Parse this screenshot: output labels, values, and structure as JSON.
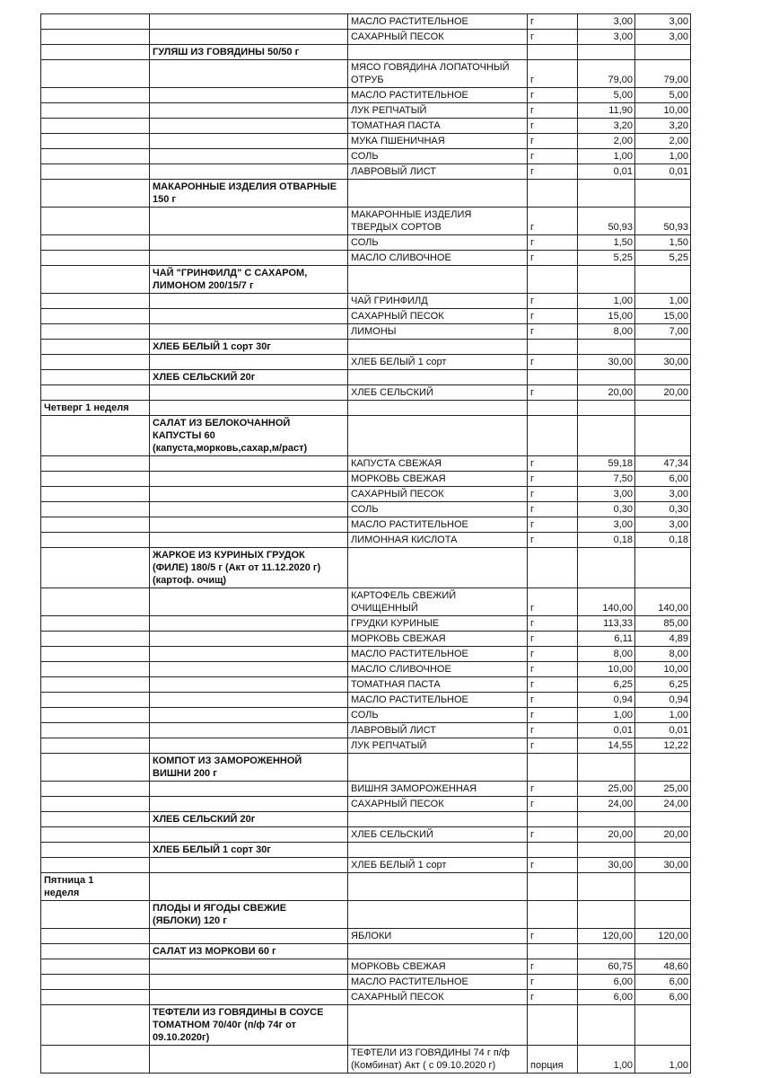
{
  "table": {
    "rows": [
      [
        "",
        "",
        "МАСЛО РАСТИТЕЛЬНОЕ",
        "г",
        "3,00",
        "3,00"
      ],
      [
        "",
        "",
        "САХАРНЫЙ ПЕСОК",
        "г",
        "3,00",
        "3,00"
      ],
      [
        "",
        "ГУЛЯШ ИЗ ГОВЯДИНЫ 50/50 г",
        "",
        "",
        "",
        ""
      ],
      [
        "",
        "",
        "МЯСО ГОВЯДИНА ЛОПАТОЧНЫЙ\nОТРУБ",
        "г",
        "79,00",
        "79,00"
      ],
      [
        "",
        "",
        "МАСЛО РАСТИТЕЛЬНОЕ",
        "г",
        "5,00",
        "5,00"
      ],
      [
        "",
        "",
        "ЛУК РЕПЧАТЫЙ",
        "г",
        "11,90",
        "10,00"
      ],
      [
        "",
        "",
        "ТОМАТНАЯ ПАСТА",
        "г",
        "3,20",
        "3,20"
      ],
      [
        "",
        "",
        "МУКА ПШЕНИЧНАЯ",
        "г",
        "2,00",
        "2,00"
      ],
      [
        "",
        "",
        "СОЛЬ",
        "г",
        "1,00",
        "1,00"
      ],
      [
        "",
        "",
        "ЛАВРОВЫЙ ЛИСТ",
        "г",
        "0,01",
        "0,01"
      ],
      [
        "",
        "МАКАРОННЫЕ ИЗДЕЛИЯ ОТВАРНЫЕ\n150 г",
        "",
        "",
        "",
        ""
      ],
      [
        "",
        "",
        "МАКАРОННЫЕ ИЗДЕЛИЯ\nТВЕРДЫХ СОРТОВ",
        "г",
        "50,93",
        "50,93"
      ],
      [
        "",
        "",
        "СОЛЬ",
        "г",
        "1,50",
        "1,50"
      ],
      [
        "",
        "",
        "МАСЛО СЛИВОЧНОЕ",
        "г",
        "5,25",
        "5,25"
      ],
      [
        "",
        "ЧАЙ \"ГРИНФИЛД\" С САХАРОМ,\nЛИМОНОМ 200/15/7 г",
        "",
        "",
        "",
        ""
      ],
      [
        "",
        "",
        "ЧАЙ ГРИНФИЛД",
        "г",
        "1,00",
        "1,00"
      ],
      [
        "",
        "",
        "САХАРНЫЙ ПЕСОК",
        "г",
        "15,00",
        "15,00"
      ],
      [
        "",
        "",
        "ЛИМОНЫ",
        "г",
        "8,00",
        "7,00"
      ],
      [
        "",
        "ХЛЕБ БЕЛЫЙ 1 сорт 30г",
        "",
        "",
        "",
        ""
      ],
      [
        "",
        "",
        "ХЛЕБ БЕЛЫЙ 1 сорт",
        "г",
        "30,00",
        "30,00"
      ],
      [
        "",
        "ХЛЕБ СЕЛЬСКИЙ  20г",
        "",
        "",
        "",
        ""
      ],
      [
        "",
        "",
        "ХЛЕБ СЕЛЬСКИЙ",
        "г",
        "20,00",
        "20,00"
      ],
      [
        "Четверг 1 неделя",
        "",
        "",
        "",
        "",
        ""
      ],
      [
        "",
        "САЛАТ ИЗ БЕЛОКОЧАННОЙ\nКАПУСТЫ 60\n(капуста,морковь,сахар,м/раст)",
        "",
        "",
        "",
        ""
      ],
      [
        "",
        "",
        "КАПУСТА СВЕЖАЯ",
        "г",
        "59,18",
        "47,34"
      ],
      [
        "",
        "",
        "МОРКОВЬ СВЕЖАЯ",
        "г",
        "7,50",
        "6,00"
      ],
      [
        "",
        "",
        "САХАРНЫЙ ПЕСОК",
        "г",
        "3,00",
        "3,00"
      ],
      [
        "",
        "",
        "СОЛЬ",
        "г",
        "0,30",
        "0,30"
      ],
      [
        "",
        "",
        "МАСЛО РАСТИТЕЛЬНОЕ",
        "г",
        "3,00",
        "3,00"
      ],
      [
        "",
        "",
        "ЛИМОННАЯ КИСЛОТА",
        "г",
        "0,18",
        "0,18"
      ],
      [
        "",
        "ЖАРКОЕ ИЗ КУРИНЫХ ГРУДОК\n(ФИЛЕ) 180/5 г (Акт от 11.12.2020 г)\n(картоф. очищ)",
        "",
        "",
        "",
        ""
      ],
      [
        "",
        "",
        "КАРТОФЕЛЬ СВЕЖИЙ\nОЧИЩЕННЫЙ",
        "г",
        "140,00",
        "140,00"
      ],
      [
        "",
        "",
        "ГРУДКИ КУРИНЫЕ",
        "г",
        "113,33",
        "85,00"
      ],
      [
        "",
        "",
        "МОРКОВЬ СВЕЖАЯ",
        "г",
        "6,11",
        "4,89"
      ],
      [
        "",
        "",
        "МАСЛО РАСТИТЕЛЬНОЕ",
        "г",
        "8,00",
        "8,00"
      ],
      [
        "",
        "",
        "МАСЛО СЛИВОЧНОЕ",
        "г",
        "10,00",
        "10,00"
      ],
      [
        "",
        "",
        "ТОМАТНАЯ ПАСТА",
        "г",
        "6,25",
        "6,25"
      ],
      [
        "",
        "",
        "МАСЛО РАСТИТЕЛЬНОЕ",
        "г",
        "0,94",
        "0,94"
      ],
      [
        "",
        "",
        "СОЛЬ",
        "г",
        "1,00",
        "1,00"
      ],
      [
        "",
        "",
        "ЛАВРОВЫЙ ЛИСТ",
        "г",
        "0,01",
        "0,01"
      ],
      [
        "",
        "",
        "ЛУК РЕПЧАТЫЙ",
        "г",
        "14,55",
        "12,22"
      ],
      [
        "",
        "КОМПОТ  ИЗ ЗАМОРОЖЕННОЙ\nВИШНИ 200 г",
        "",
        "",
        "",
        ""
      ],
      [
        "",
        "",
        "ВИШНЯ ЗАМОРОЖЕННАЯ",
        "г",
        "25,00",
        "25,00"
      ],
      [
        "",
        "",
        "САХАРНЫЙ ПЕСОК",
        "г",
        "24,00",
        "24,00"
      ],
      [
        "",
        "ХЛЕБ СЕЛЬСКИЙ  20г",
        "",
        "",
        "",
        ""
      ],
      [
        "",
        "",
        "ХЛЕБ СЕЛЬСКИЙ",
        "г",
        "20,00",
        "20,00"
      ],
      [
        "",
        "ХЛЕБ БЕЛЫЙ 1 сорт 30г",
        "",
        "",
        "",
        ""
      ],
      [
        "",
        "",
        "ХЛЕБ БЕЛЫЙ 1 сорт",
        "г",
        "30,00",
        "30,00"
      ],
      [
        "Пятница 1\nнеделя",
        "",
        "",
        "",
        "",
        ""
      ],
      [
        "",
        "ПЛОДЫ И ЯГОДЫ СВЕЖИЕ\n(ЯБЛОКИ) 120 г",
        "",
        "",
        "",
        ""
      ],
      [
        "",
        "",
        "ЯБЛОКИ",
        "г",
        "120,00",
        "120,00"
      ],
      [
        "",
        "САЛАТ ИЗ МОРКОВИ 60 г",
        "",
        "",
        "",
        ""
      ],
      [
        "",
        "",
        "МОРКОВЬ СВЕЖАЯ",
        "г",
        "60,75",
        "48,60"
      ],
      [
        "",
        "",
        "МАСЛО РАСТИТЕЛЬНОЕ",
        "г",
        "6,00",
        "6,00"
      ],
      [
        "",
        "",
        "САХАРНЫЙ ПЕСОК",
        "г",
        "6,00",
        "6,00"
      ],
      [
        "",
        "ТЕФТЕЛИ ИЗ ГОВЯДИНЫ В СОУСЕ\nТОМАТНОМ 70/40г (п/ф 74г от\n09.10.2020г)",
        "",
        "",
        "",
        ""
      ],
      [
        "",
        "",
        "ТЕФТЕЛИ ИЗ ГОВЯДИНЫ  74 г п/ф\n(Комбинат) Акт ( с 09.10.2020 г)",
        "порция",
        "1,00",
        "1,00"
      ]
    ]
  }
}
